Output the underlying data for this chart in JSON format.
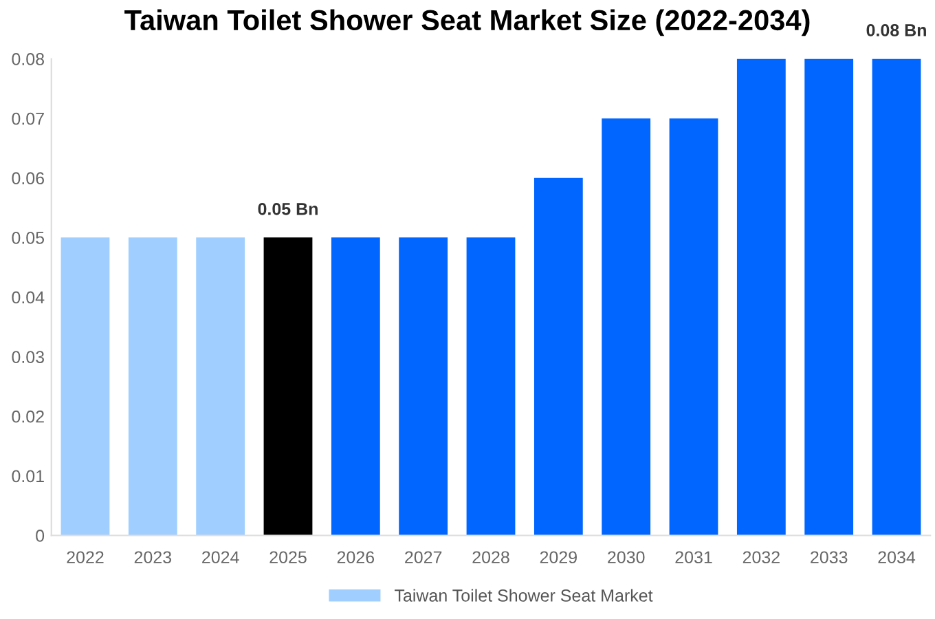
{
  "chart_data": {
    "type": "bar",
    "title": "Taiwan Toilet Shower Seat Market Size (2022-2034)",
    "categories": [
      "2022",
      "2023",
      "2024",
      "2025",
      "2026",
      "2027",
      "2028",
      "2029",
      "2030",
      "2031",
      "2032",
      "2033",
      "2034"
    ],
    "series": [
      {
        "name": "Taiwan Toilet Shower Seat Market",
        "color": "#a0cfff",
        "colors": [
          "#a0cfff",
          "#a0cfff",
          "#a0cfff",
          "#000000",
          "#0066ff",
          "#0066ff",
          "#0066ff",
          "#0066ff",
          "#0066ff",
          "#0066ff",
          "#0066ff",
          "#0066ff",
          "#0066ff"
        ],
        "values": [
          0.05,
          0.05,
          0.05,
          0.05,
          0.05,
          0.05,
          0.05,
          0.06,
          0.07,
          0.07,
          0.08,
          0.08,
          0.08
        ],
        "value_labels": [
          null,
          null,
          null,
          "0.05 Bn",
          null,
          null,
          null,
          null,
          null,
          null,
          null,
          null,
          "0.08 Bn"
        ]
      }
    ],
    "ylim": [
      0,
      0.08
    ],
    "yticks": [
      0,
      0.01,
      0.02,
      0.03,
      0.04,
      0.05,
      0.06,
      0.07,
      0.08
    ],
    "grid": false,
    "legend": "bottom"
  }
}
